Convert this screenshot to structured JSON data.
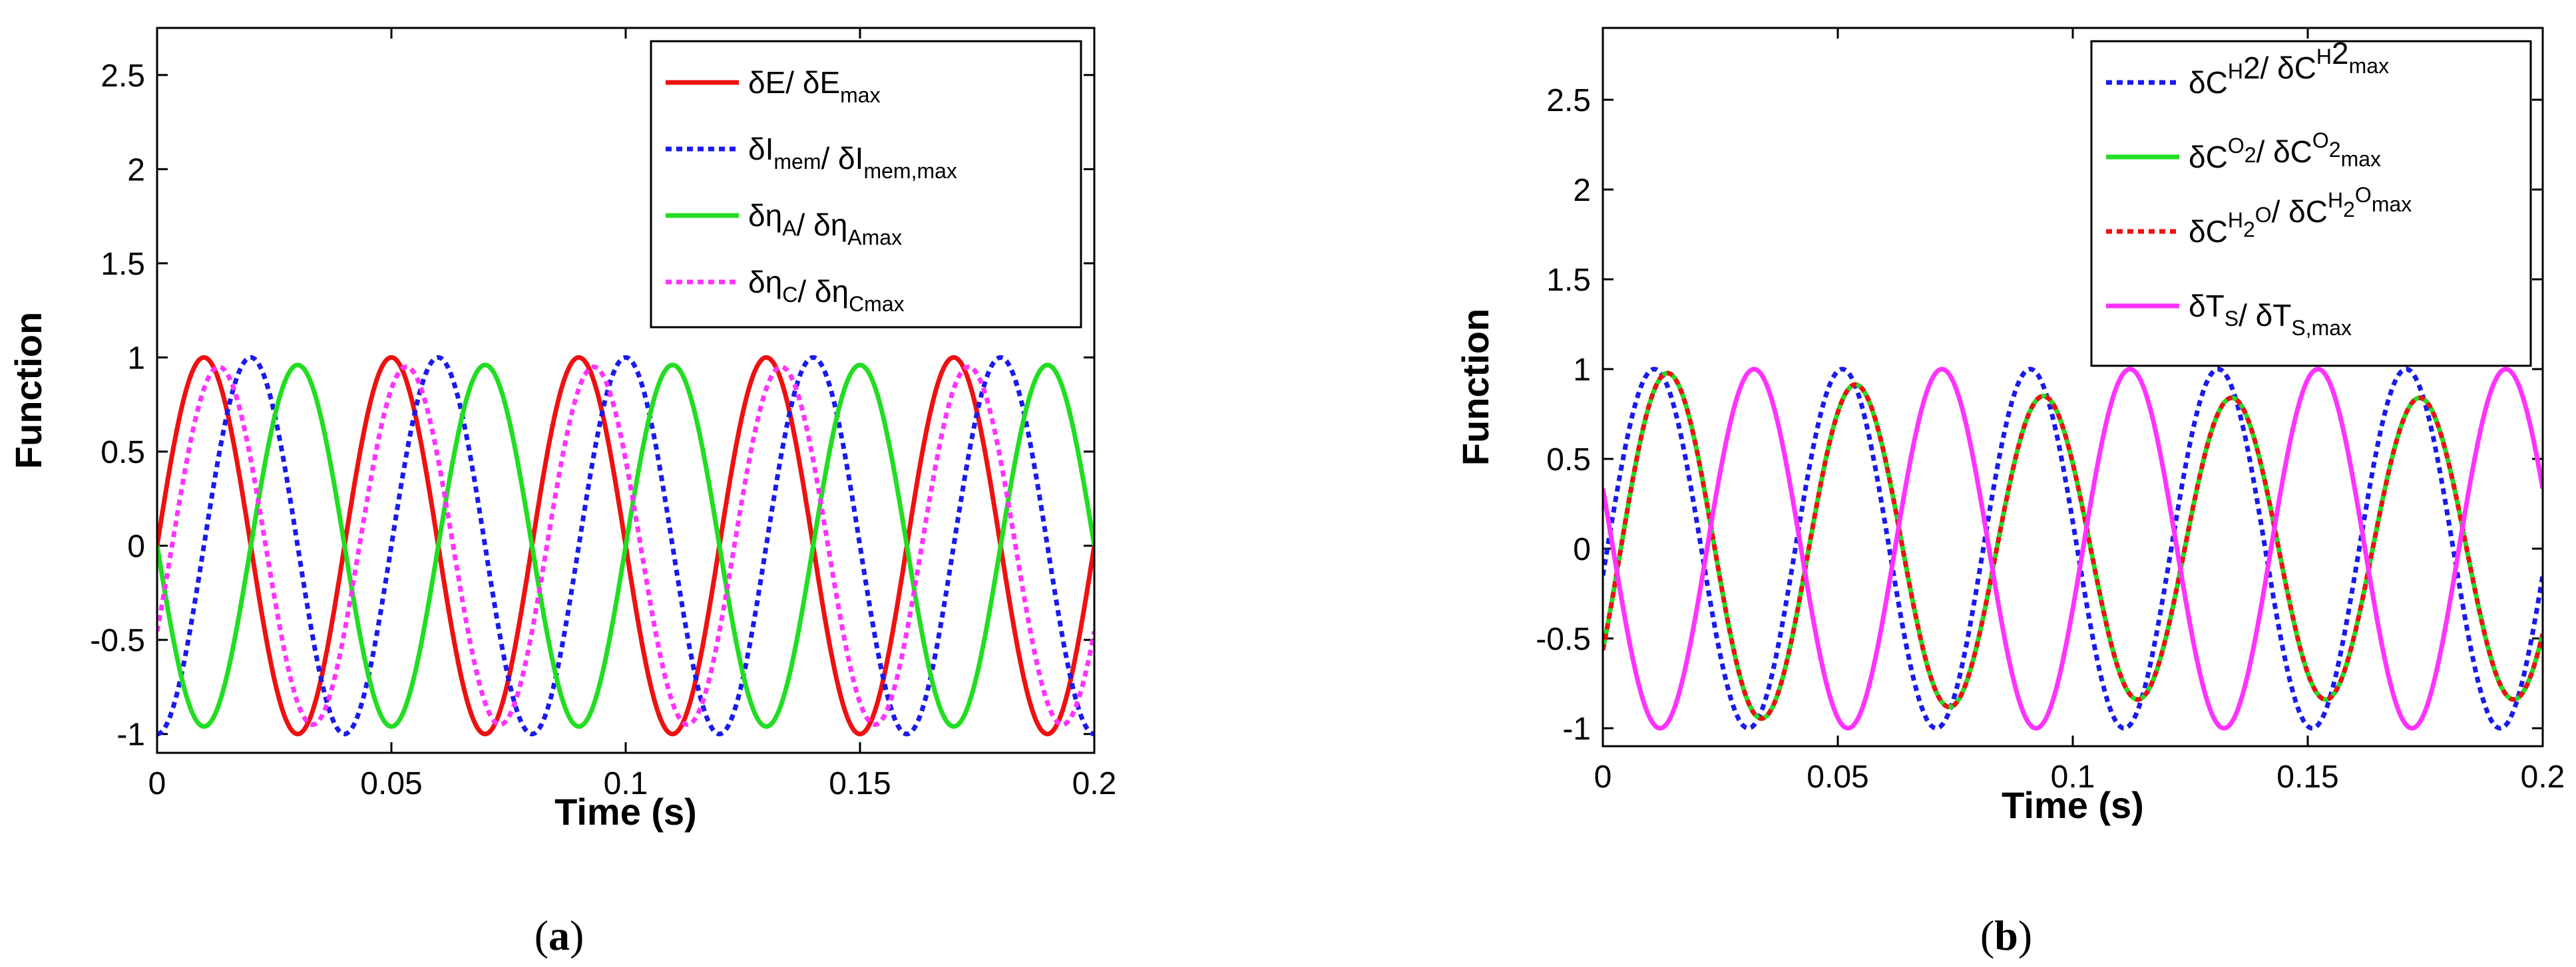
{
  "chart_data": [
    {
      "type": "line",
      "panel_label": "a",
      "xlabel": "Time (s)",
      "ylabel": "Function",
      "xlim": [
        0,
        0.2
      ],
      "ylim": [
        -1.1,
        2.75
      ],
      "xticks": [
        0,
        0.05,
        0.1,
        0.15,
        0.2
      ],
      "xtick_labels": [
        "0",
        "0.05",
        "0.1",
        "0.15",
        "0.2"
      ],
      "yticks": [
        -1,
        -0.5,
        0,
        0.5,
        1,
        1.5,
        2,
        2.5
      ],
      "ytick_labels": [
        "-1",
        "-0.5",
        "0",
        "0.5",
        "1",
        "1.5",
        "2",
        "2.5"
      ],
      "legend_position": "top-right",
      "series": [
        {
          "name": "δE/ δEmax",
          "legend": [
            [
              "δE/ δE",
              ""
            ],
            [
              "max",
              "sub"
            ]
          ],
          "color": "#ee1111",
          "style": "solid",
          "frequency_hz": 25,
          "amplitude": 1,
          "phase_rad": 0
        },
        {
          "name": "δImem/ δImem,max",
          "legend": [
            [
              "δI",
              ""
            ],
            [
              "mem",
              "sub"
            ],
            [
              "/ δI",
              ""
            ],
            [
              "mem,max",
              "sub"
            ]
          ],
          "color": "#1a1aee",
          "style": "dotted",
          "frequency_hz": 25,
          "amplitude": 1,
          "phase_rad": -1.57
        },
        {
          "name": "δηA/ δηAmax",
          "legend": [
            [
              "δη",
              ""
            ],
            [
              "A",
              "sub"
            ],
            [
              "/ δη",
              ""
            ],
            [
              "Amax",
              "sub"
            ]
          ],
          "color": "#22dd22",
          "style": "solid",
          "frequency_hz": 25,
          "amplitude": 0.96,
          "phase_rad": 3.14
        },
        {
          "name": "δηC/ δηCmax",
          "legend": [
            [
              "δη",
              ""
            ],
            [
              "C",
              "sub"
            ],
            [
              "/ δη",
              ""
            ],
            [
              "Cmax",
              "sub"
            ]
          ],
          "color": "#ff33ff",
          "style": "dotted",
          "frequency_hz": 25,
          "amplitude": 0.95,
          "phase_rad": -0.5
        }
      ]
    },
    {
      "type": "line",
      "panel_label": "b",
      "xlabel": "Time (s)",
      "ylabel": "Function",
      "xlim": [
        0,
        0.2
      ],
      "ylim": [
        -1.1,
        2.9
      ],
      "xticks": [
        0,
        0.05,
        0.1,
        0.15,
        0.2
      ],
      "xtick_labels": [
        "0",
        "0.05",
        "0.1",
        "0.15",
        "0.2"
      ],
      "yticks": [
        -1,
        -0.5,
        0,
        0.5,
        1,
        1.5,
        2,
        2.5
      ],
      "ytick_labels": [
        "-1",
        "-0.5",
        "0",
        "0.5",
        "1",
        "1.5",
        "2",
        "2.5"
      ],
      "legend_position": "top-right",
      "series": [
        {
          "name": "δCH2/ δCH2max",
          "legend": [
            [
              "δC",
              ""
            ],
            [
              "H",
              "sup"
            ],
            [
              "2",
              ""
            ],
            [
              "/ δC",
              ""
            ],
            [
              "H",
              "sup"
            ],
            [
              "2",
              ""
            ],
            [
              "max",
              "sub"
            ]
          ],
          "color": "#1a1aee",
          "style": "dotted",
          "frequency_hz": 25,
          "amplitude": 1,
          "phase_rad": -0.15,
          "amp_decay": 0
        },
        {
          "name": "δCO2/ δCO2max",
          "legend": [
            [
              "δC",
              ""
            ],
            [
              "O",
              "sup"
            ],
            [
              "2",
              "sub"
            ],
            [
              "/ δC",
              ""
            ],
            [
              "O",
              "sup"
            ],
            [
              "2",
              "sub"
            ],
            [
              "max",
              "sub"
            ]
          ],
          "color": "#22dd22",
          "style": "solid",
          "frequency_hz": 25,
          "amplitude": 1,
          "phase_rad": -0.6,
          "amp_decay": 0.4
        },
        {
          "name": "δCH2O/ δCH2Omax",
          "legend": [
            [
              "δC",
              ""
            ],
            [
              "H",
              "sup"
            ],
            [
              "2",
              "sub"
            ],
            [
              "O",
              "sup"
            ],
            [
              "/ δC",
              ""
            ],
            [
              "H",
              "sup"
            ],
            [
              "2",
              "sub"
            ],
            [
              "O",
              "sup"
            ],
            [
              "max",
              "sub"
            ]
          ],
          "color": "#ee1111",
          "style": "dotted",
          "frequency_hz": 25,
          "amplitude": 1,
          "phase_rad": -0.6,
          "amp_decay": 0.4
        },
        {
          "name": "δTS/ δTS,max",
          "legend": [
            [
              "δT",
              ""
            ],
            [
              "S",
              "sub"
            ],
            [
              "/ δT",
              ""
            ],
            [
              "S,max",
              "sub"
            ]
          ],
          "color": "#ff33ff",
          "style": "solid",
          "frequency_hz": 25,
          "amplitude": 1,
          "phase_rad": 2.8,
          "amp_decay": 0
        }
      ]
    }
  ]
}
